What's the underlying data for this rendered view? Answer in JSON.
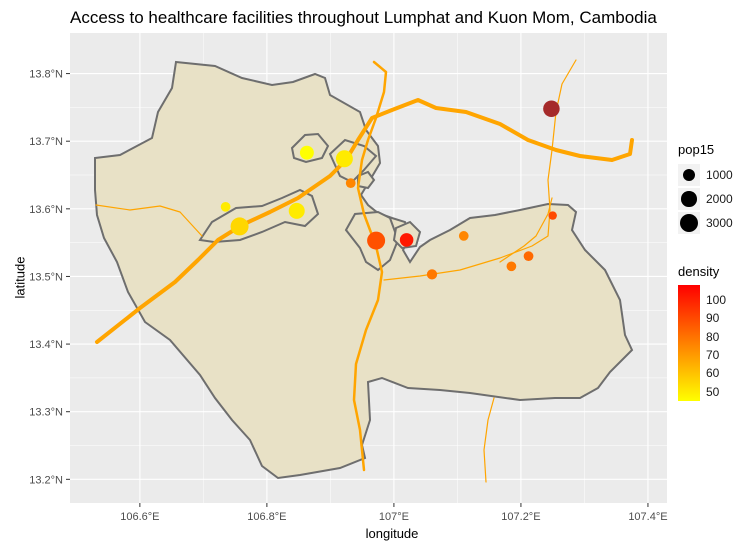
{
  "title": "Access to healthcare facilities throughout Lumphat and Kuon Mom, Cambodia",
  "xlabel": "longitude",
  "ylabel": "latitude",
  "x_ticks": [
    {
      "value": 106.6,
      "label": "106.6°E"
    },
    {
      "value": 106.8,
      "label": "106.8°E"
    },
    {
      "value": 107.0,
      "label": "107°E"
    },
    {
      "value": 107.2,
      "label": "107.2°E"
    },
    {
      "value": 107.4,
      "label": "107.4°E"
    }
  ],
  "y_ticks": [
    {
      "value": 13.2,
      "label": "13.2°N"
    },
    {
      "value": 13.3,
      "label": "13.3°N"
    },
    {
      "value": 13.4,
      "label": "13.4°N"
    },
    {
      "value": 13.5,
      "label": "13.5°N"
    },
    {
      "value": 13.6,
      "label": "13.6°N"
    },
    {
      "value": 13.7,
      "label": "13.7°N"
    },
    {
      "value": 13.8,
      "label": "13.8°N"
    }
  ],
  "size_legend": {
    "title": "pop15",
    "entries": [
      {
        "label": "1000",
        "value": 1000
      },
      {
        "label": "2000",
        "value": 2000
      },
      {
        "label": "3000",
        "value": 3000
      }
    ]
  },
  "density_legend": {
    "title": "density",
    "labels": [
      "100",
      "90",
      "80",
      "70",
      "60",
      "50"
    ],
    "range": [
      45,
      108
    ]
  },
  "colors": {
    "panel": "#ebebeb",
    "grid": "#ffffff",
    "region_fill": "#e8e1c6",
    "region_border": "#6e6e6e",
    "road": "#ffa500",
    "low": "#ffff00",
    "mid": "#ff8000",
    "high": "#ff0000"
  },
  "chart_data": {
    "type": "scatter",
    "xlim": [
      106.49,
      107.43
    ],
    "ylim": [
      13.165,
      13.86
    ],
    "points": [
      {
        "lon": 106.757,
        "lat": 13.574,
        "pop15": 3000,
        "density": 55
      },
      {
        "lon": 106.847,
        "lat": 13.597,
        "pop15": 2200,
        "density": 50
      },
      {
        "lon": 106.922,
        "lat": 13.674,
        "pop15": 2600,
        "density": 50
      },
      {
        "lon": 106.863,
        "lat": 13.683,
        "pop15": 1500,
        "density": 45
      },
      {
        "lon": 106.972,
        "lat": 13.553,
        "pop15": 3000,
        "density": 88
      },
      {
        "lon": 107.02,
        "lat": 13.554,
        "pop15": 1400,
        "density": 102
      },
      {
        "lon": 107.248,
        "lat": 13.748,
        "pop15": 2400,
        "density": 108
      },
      {
        "lon": 106.735,
        "lat": 13.603,
        "pop15": 500,
        "density": 50
      },
      {
        "lon": 107.06,
        "lat": 13.503,
        "pop15": 600,
        "density": 78
      },
      {
        "lon": 107.11,
        "lat": 13.56,
        "pop15": 500,
        "density": 75
      },
      {
        "lon": 107.185,
        "lat": 13.515,
        "pop15": 500,
        "density": 78
      },
      {
        "lon": 107.212,
        "lat": 13.53,
        "pop15": 500,
        "density": 82
      },
      {
        "lon": 107.25,
        "lat": 13.59,
        "pop15": 300,
        "density": 90
      },
      {
        "lon": 106.932,
        "lat": 13.638,
        "pop15": 500,
        "density": 75
      }
    ]
  }
}
